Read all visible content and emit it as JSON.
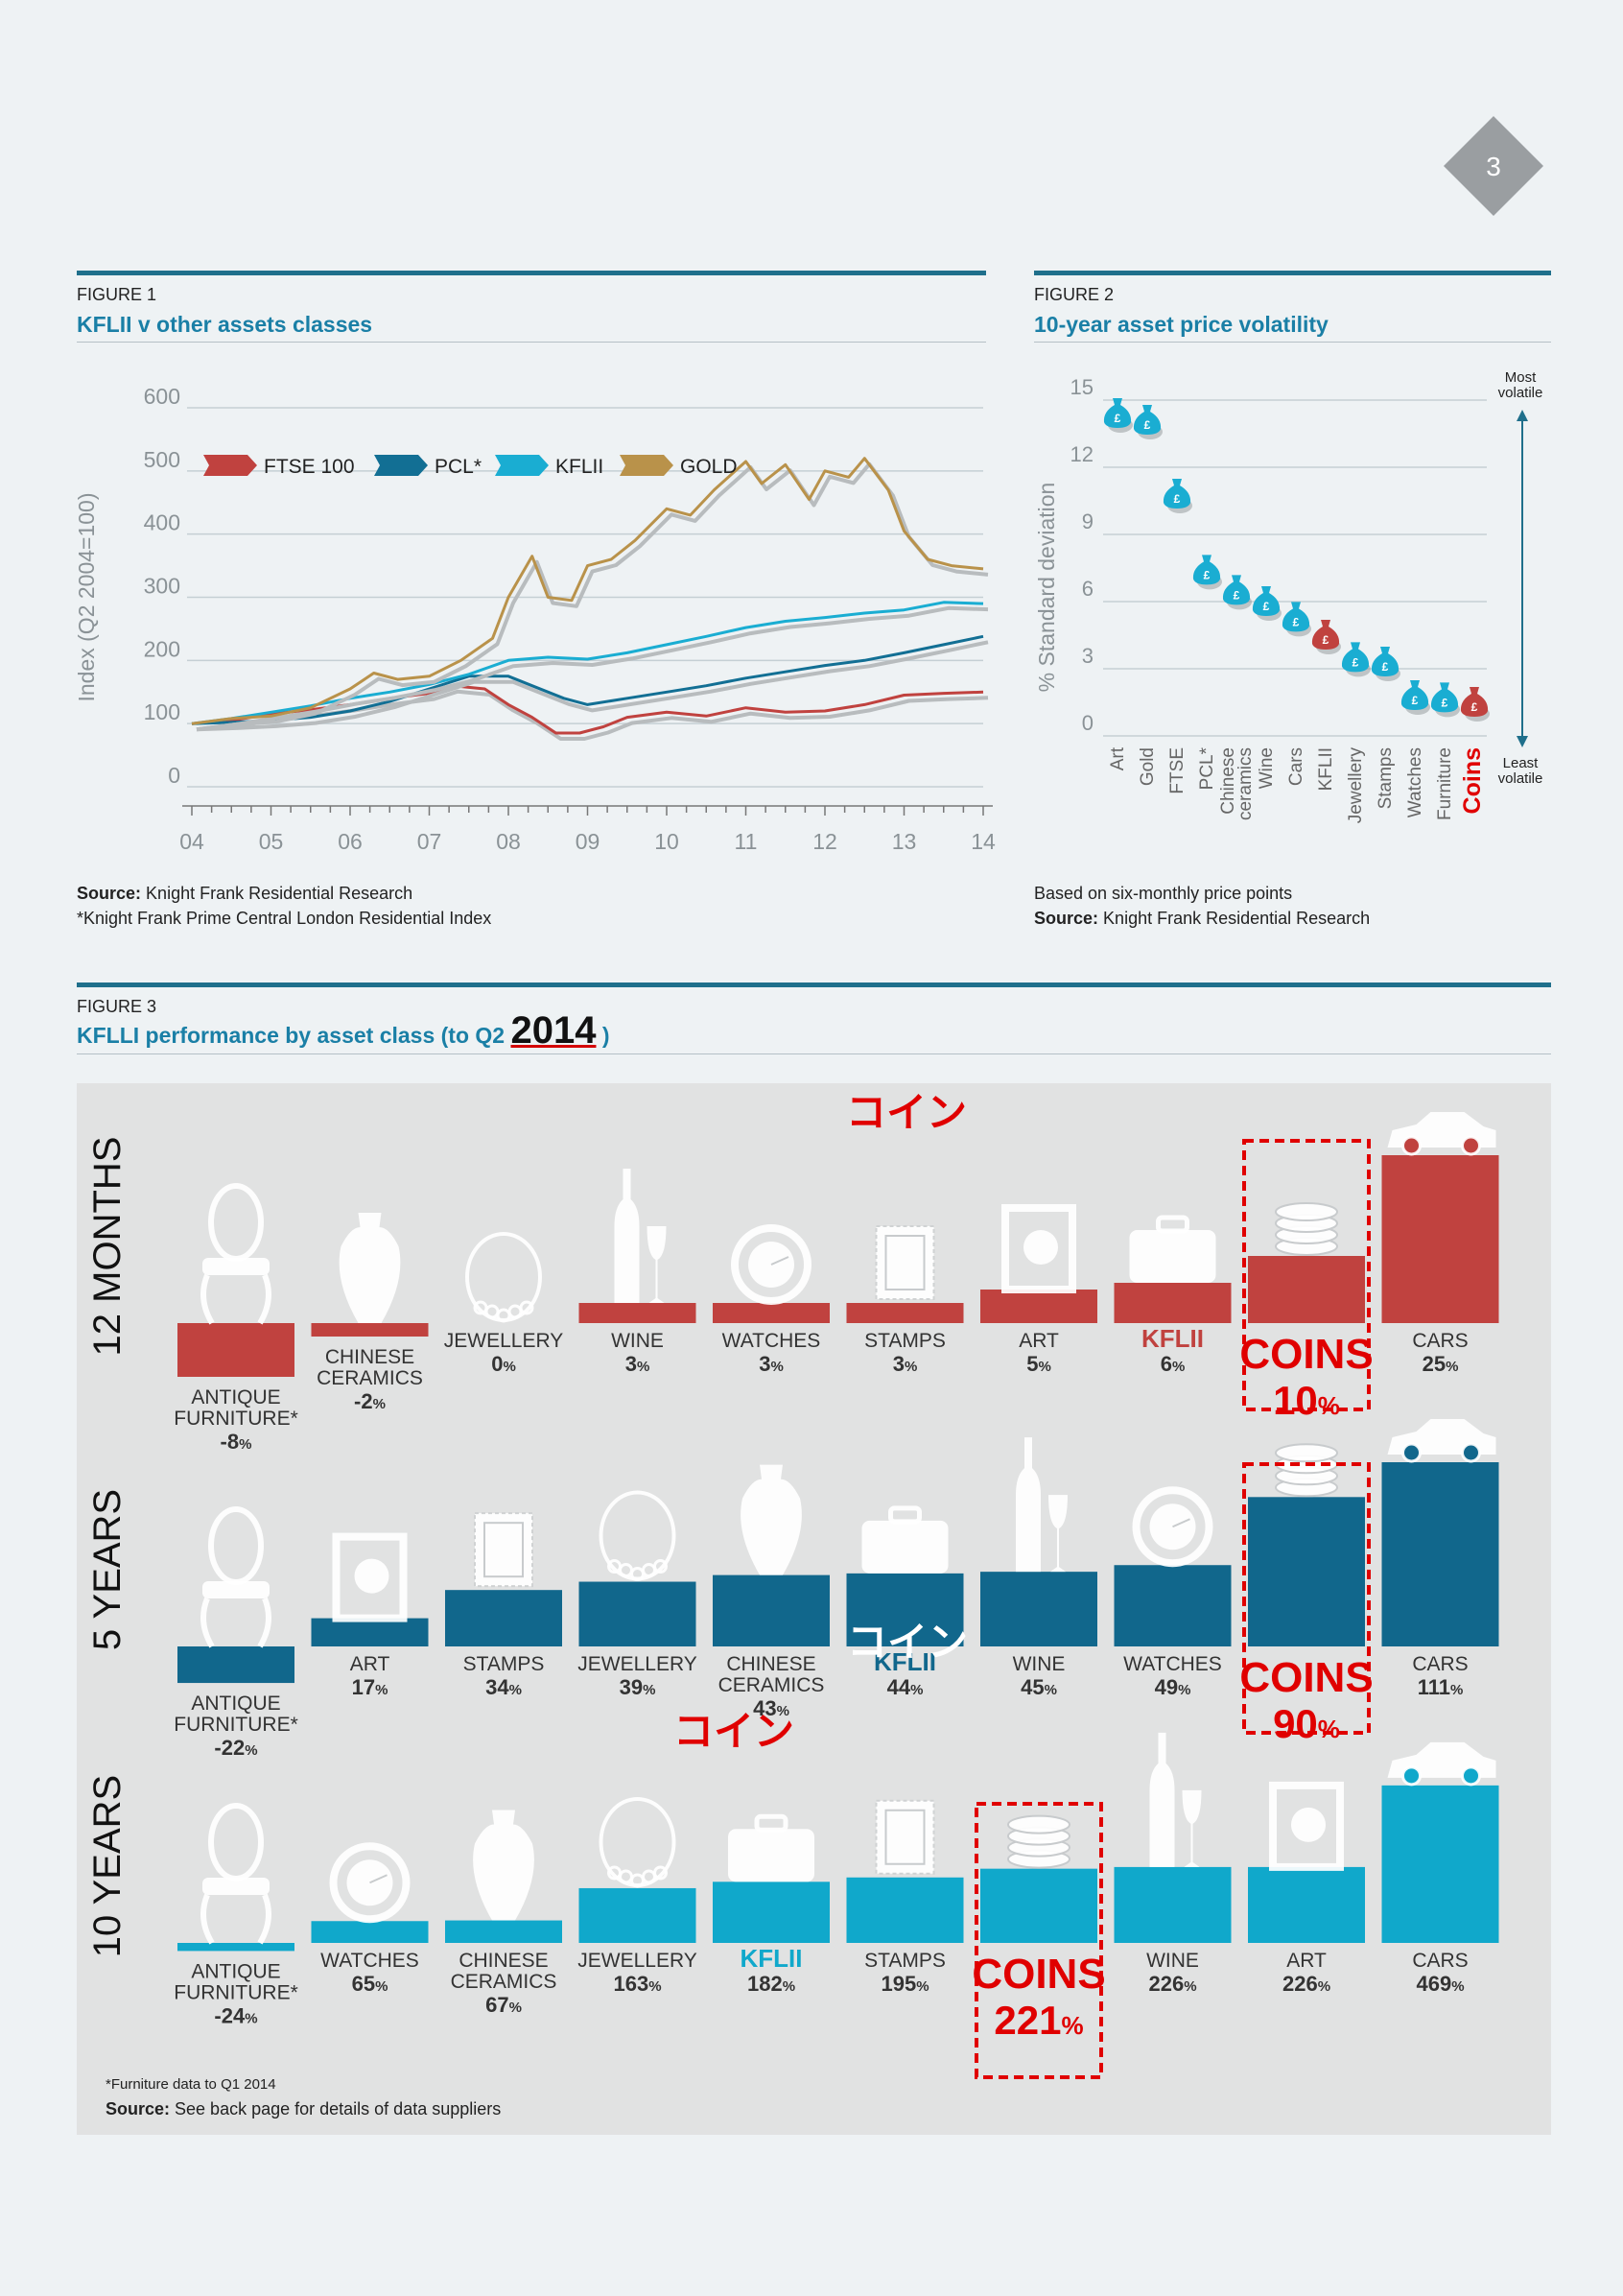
{
  "page_number": "3",
  "colors": {
    "ftse": "#c0423f",
    "pcl": "#126f94",
    "kflii": "#1aadd2",
    "gold": "#b9924a",
    "rule": "#1f6f8b",
    "title": "#1a7fa6",
    "annotation": "#e00000",
    "twelve_months": "#c0423f",
    "five_years": "#11678c",
    "ten_years": "#10a8cb"
  },
  "figure1": {
    "label": "FIGURE 1",
    "title": "KFLII v other assets classes",
    "source_bold": "Source:",
    "source_text": "Knight Frank Residential Research",
    "footnote": "*Knight Frank Prime Central London Residential Index"
  },
  "figure2": {
    "label": "FIGURE 2",
    "title": "10-year asset price volatility",
    "note": "Based on six-monthly price points",
    "source_bold": "Source:",
    "source_text": "Knight Frank Residential Research",
    "most_label": [
      "Most",
      "volatile"
    ],
    "least_label": [
      "Least",
      "volatile"
    ],
    "icon": "money-bag-icon",
    "icon_glyph": "£"
  },
  "figure3": {
    "label": "FIGURE 3",
    "title_prefix": "KFLLI performance by asset class (to Q2",
    "title_year": "2014",
    "title_suffix": ")",
    "footnote": "*Furniture data to Q1 2014",
    "source_bold": "Source:",
    "source_text": "See back page for details of data suppliers",
    "annotation_jp": "コイン",
    "coins_label": "COINS"
  },
  "chart_data": [
    {
      "type": "line",
      "xlabel": "",
      "ylabel": "Index (Q2 2004=100)",
      "ylim": [
        0,
        600
      ],
      "yticks": [
        0,
        100,
        200,
        300,
        400,
        500,
        600
      ],
      "xlim": [
        2004,
        2014
      ],
      "xticks": [
        "04",
        "05",
        "06",
        "07",
        "08",
        "09",
        "10",
        "11",
        "12",
        "13",
        "14"
      ],
      "legend_position": "top",
      "series": [
        {
          "name": "FTSE 100",
          "color": "#c0423f",
          "x": [
            2004,
            2004.5,
            2005,
            2005.5,
            2006,
            2006.5,
            2007,
            2007.3,
            2007.7,
            2008,
            2008.3,
            2008.6,
            2008.9,
            2009.2,
            2009.5,
            2010,
            2010.5,
            2011,
            2011.5,
            2012,
            2012.5,
            2013,
            2013.5,
            2014
          ],
          "values": [
            100,
            105,
            115,
            122,
            130,
            140,
            148,
            160,
            155,
            130,
            110,
            85,
            85,
            95,
            110,
            118,
            112,
            125,
            118,
            120,
            130,
            145,
            148,
            150
          ]
        },
        {
          "name": "PCL*",
          "color": "#126f94",
          "x": [
            2004,
            2004.5,
            2005,
            2005.5,
            2006,
            2006.5,
            2007,
            2007.5,
            2008,
            2008.3,
            2008.7,
            2009,
            2009.5,
            2010,
            2010.5,
            2011,
            2011.5,
            2012,
            2012.5,
            2013,
            2013.5,
            2014
          ],
          "values": [
            100,
            102,
            105,
            110,
            120,
            135,
            155,
            175,
            175,
            160,
            140,
            130,
            140,
            150,
            160,
            172,
            182,
            192,
            200,
            212,
            225,
            238
          ]
        },
        {
          "name": "KFLII",
          "color": "#1aadd2",
          "x": [
            2004,
            2004.5,
            2005,
            2005.5,
            2006,
            2006.5,
            2007,
            2007.5,
            2008,
            2008.5,
            2009,
            2009.5,
            2010,
            2010.5,
            2011,
            2011.5,
            2012,
            2012.5,
            2013,
            2013.5,
            2014
          ],
          "values": [
            100,
            108,
            118,
            128,
            140,
            150,
            162,
            178,
            200,
            205,
            202,
            212,
            225,
            238,
            252,
            262,
            268,
            275,
            280,
            292,
            290
          ]
        },
        {
          "name": "GOLD",
          "color": "#b9924a",
          "x": [
            2004,
            2004.5,
            2005,
            2005.5,
            2006,
            2006.3,
            2006.6,
            2007,
            2007.4,
            2007.8,
            2008,
            2008.3,
            2008.5,
            2008.8,
            2009,
            2009.3,
            2009.6,
            2010,
            2010.3,
            2010.6,
            2011,
            2011.2,
            2011.5,
            2011.8,
            2012,
            2012.3,
            2012.5,
            2012.8,
            2013,
            2013.3,
            2013.6,
            2014
          ],
          "values": [
            100,
            108,
            112,
            125,
            155,
            180,
            170,
            175,
            200,
            235,
            300,
            365,
            300,
            295,
            350,
            360,
            390,
            440,
            430,
            470,
            515,
            480,
            510,
            455,
            500,
            490,
            520,
            470,
            405,
            360,
            350,
            345
          ]
        }
      ]
    },
    {
      "type": "scatter",
      "ylabel": "% Standard deviation",
      "ylim": [
        0,
        15
      ],
      "yticks": [
        0,
        3,
        6,
        9,
        12,
        15
      ],
      "categories": [
        "Art",
        "Gold",
        "FTSE",
        "PCL*",
        "Chinese ceramics",
        "Wine",
        "Cars",
        "KFLII",
        "Jewellery",
        "Stamps",
        "Watches",
        "Furniture",
        "Coins"
      ],
      "category_labels": [
        [
          "Art"
        ],
        [
          "Gold"
        ],
        [
          "FTSE"
        ],
        [
          "PCL*"
        ],
        [
          "Chinese",
          "ceramics"
        ],
        [
          "Wine"
        ],
        [
          "Cars"
        ],
        [
          "KFLII"
        ],
        [
          "Jewellery"
        ],
        [
          "Stamps"
        ],
        [
          "Watches"
        ],
        [
          "Furniture"
        ],
        [
          "Coins"
        ]
      ],
      "values": [
        13.8,
        13.5,
        10.2,
        6.8,
        5.9,
        5.4,
        4.7,
        3.9,
        2.9,
        2.7,
        1.2,
        1.1,
        0.9
      ],
      "highlight": [
        "KFLII",
        "Coins"
      ]
    },
    {
      "type": "bar",
      "period": "12 MONTHS",
      "categories": [
        "ANTIQUE FURNITURE*",
        "CHINESE CERAMICS",
        "JEWELLERY",
        "WINE",
        "WATCHES",
        "STAMPS",
        "ART",
        "KFLII",
        "COINS",
        "CARS"
      ],
      "category_labels": [
        [
          "ANTIQUE",
          "FURNITURE*"
        ],
        [
          "CHINESE",
          "CERAMICS"
        ],
        [
          "JEWELLERY"
        ],
        [
          "WINE"
        ],
        [
          "WATCHES"
        ],
        [
          "STAMPS"
        ],
        [
          "ART"
        ],
        [
          "KFLII"
        ],
        [
          "COINS"
        ],
        [
          "CARS"
        ]
      ],
      "value_labels": [
        "-8",
        "-2",
        "0",
        "3",
        "3",
        "3",
        "5",
        "6",
        "10",
        "25"
      ],
      "values": [
        -8,
        -2,
        0,
        3,
        3,
        3,
        5,
        6,
        10,
        25
      ],
      "icons": [
        "chair-icon",
        "vase-icon",
        "necklace-icon",
        "wine-bottle-icon",
        "watch-icon",
        "stamp-icon",
        "art-frame-icon",
        "briefcase-icon",
        "coins-icon",
        "car-icon"
      ],
      "unit": "%"
    },
    {
      "type": "bar",
      "period": "5 YEARS",
      "categories": [
        "ANTIQUE FURNITURE*",
        "ART",
        "STAMPS",
        "JEWELLERY",
        "CHINESE CERAMICS",
        "KFLII",
        "WINE",
        "WATCHES",
        "COINS",
        "CARS"
      ],
      "category_labels": [
        [
          "ANTIQUE",
          "FURNITURE*"
        ],
        [
          "ART"
        ],
        [
          "STAMPS"
        ],
        [
          "JEWELLERY"
        ],
        [
          "CHINESE",
          "CERAMICS"
        ],
        [
          "KFLII"
        ],
        [
          "WINE"
        ],
        [
          "WATCHES"
        ],
        [
          "COINS"
        ],
        [
          "CARS"
        ]
      ],
      "value_labels": [
        "-22",
        "17",
        "34",
        "39",
        "43",
        "44",
        "45",
        "49",
        "90",
        "111"
      ],
      "values": [
        -22,
        17,
        34,
        39,
        43,
        44,
        45,
        49,
        90,
        111
      ],
      "icons": [
        "chair-icon",
        "art-frame-icon",
        "stamp-icon",
        "necklace-icon",
        "vase-icon",
        "briefcase-icon",
        "wine-bottle-icon",
        "watch-icon",
        "coins-icon",
        "car-icon"
      ],
      "unit": "%"
    },
    {
      "type": "bar",
      "period": "10 YEARS",
      "categories": [
        "ANTIQUE FURNITURE*",
        "WATCHES",
        "CHINESE CERAMICS",
        "JEWELLERY",
        "KFLII",
        "STAMPS",
        "COINS",
        "WINE",
        "ART",
        "CARS"
      ],
      "category_labels": [
        [
          "ANTIQUE",
          "FURNITURE*"
        ],
        [
          "WATCHES"
        ],
        [
          "CHINESE",
          "CERAMICS"
        ],
        [
          "JEWELLERY"
        ],
        [
          "KFLII"
        ],
        [
          "STAMPS"
        ],
        [
          "COINS"
        ],
        [
          "WINE"
        ],
        [
          "ART"
        ],
        [
          "CARS"
        ]
      ],
      "value_labels": [
        "-24",
        "65",
        "67",
        "163",
        "182",
        "195",
        "221",
        "226",
        "226",
        "469"
      ],
      "values": [
        -24,
        65,
        67,
        163,
        182,
        195,
        221,
        226,
        226,
        469
      ],
      "icons": [
        "chair-icon",
        "watch-icon",
        "vase-icon",
        "necklace-icon",
        "briefcase-icon",
        "stamp-icon",
        "coins-icon",
        "wine-bottle-icon",
        "art-frame-icon",
        "car-icon"
      ],
      "unit": "%"
    }
  ]
}
